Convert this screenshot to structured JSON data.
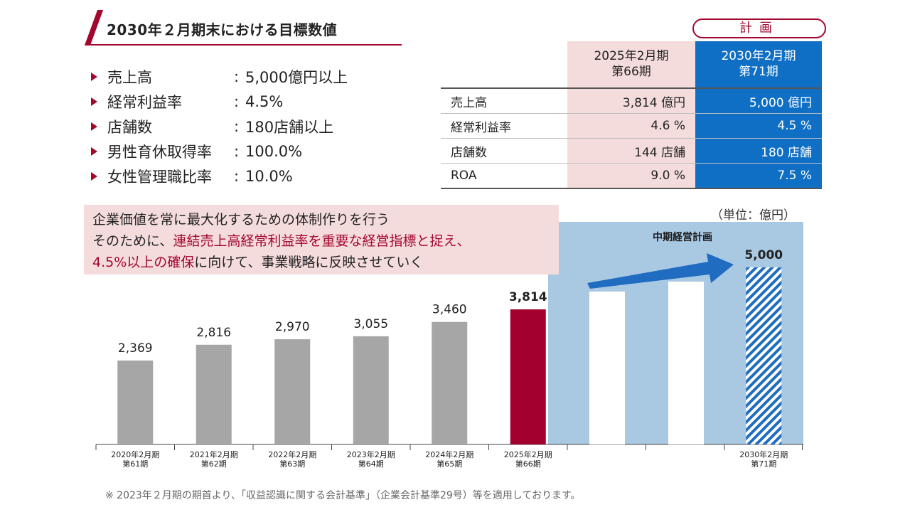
{
  "title": "2030年２月期末における目標数値",
  "targets": [
    {
      "label": "売上高",
      "colon": ":",
      "value": "5,000億円以上"
    },
    {
      "label": "経常利益率",
      "colon": ":",
      "value": "4.5%"
    },
    {
      "label": "店舗数",
      "colon": ":",
      "value": "180店舗以上"
    },
    {
      "label": "男性育休取得率",
      "colon": ":",
      "value": "100.0%"
    },
    {
      "label": "女性管理職比率",
      "colon": ":",
      "value": "10.0%"
    }
  ],
  "plan_table": {
    "plan_label": "計画",
    "head_2025_line1": "2025年2月期",
    "head_2025_line2": "第66期",
    "head_2030_line1": "2030年2月期",
    "head_2030_line2": "第71期",
    "rows": [
      {
        "label": "売上高",
        "v2025": "3,814 億円",
        "v2030": "5,000 億円"
      },
      {
        "label": "経常利益率",
        "v2025": "4.6 %",
        "v2030": "4.5 %"
      },
      {
        "label": "店舗数",
        "v2025": "144 店舗",
        "v2030": "180 店舗"
      },
      {
        "label": "ROA",
        "v2025": "9.0 %",
        "v2030": "7.5 %"
      }
    ]
  },
  "policy": {
    "line1": "企業価値を常に最大化するための体制作りを行う",
    "line2_pre": "そのために、",
    "line2_red": "連結売上高経常利益率を重要な経営指標と捉え、",
    "line3_red": "4.5%以上の確保",
    "line3_post": "に向けて、事業戦略に反映させていく"
  },
  "unit": "（単位：億円）",
  "chart_data": {
    "type": "bar",
    "title": "",
    "categories": [
      [
        "2020年2月期",
        "第61期"
      ],
      [
        "2021年2月期",
        "第62期"
      ],
      [
        "2022年2月期",
        "第63期"
      ],
      [
        "2023年2月期",
        "第64期"
      ],
      [
        "2024年2月期",
        "第65期"
      ],
      [
        "2025年2月期",
        "第66期"
      ],
      [
        "",
        ""
      ],
      [
        "",
        ""
      ],
      [
        "2030年2月期",
        "第71期"
      ]
    ],
    "values": [
      2369,
      2816,
      2970,
      3055,
      3460,
      3814,
      null,
      null,
      5000
    ],
    "labels": [
      "2,369",
      "2,816",
      "2,970",
      "3,055",
      "3,460",
      "3,814",
      "",
      "",
      "5,000"
    ],
    "plan_area_label": "中期経営計画",
    "ylim": [
      0,
      5500
    ],
    "colors": {
      "actual": "#a6a6a6",
      "latest": "#a3002e",
      "plan_bg": "#a9c9e3",
      "plan_bar": "#1f6cc0",
      "arrow": "#1f6cc0"
    }
  },
  "footnote": "※ 2023年２月期の期首より、「収益認識に関する会計基準」（企業会計基準29号）等を適用しております。"
}
